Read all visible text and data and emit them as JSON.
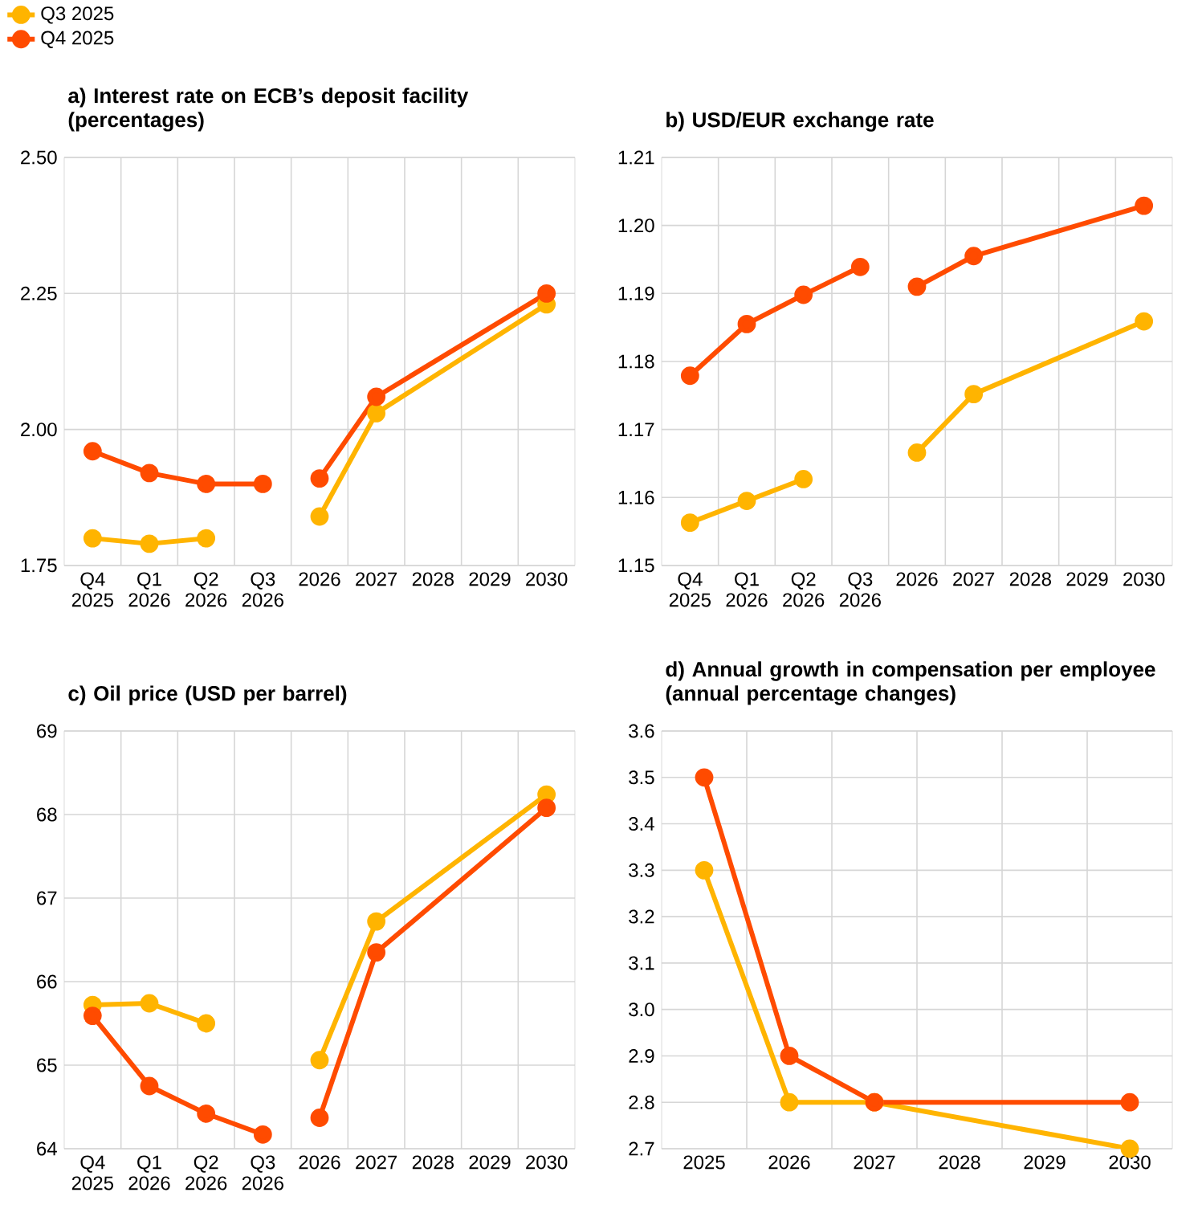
{
  "chart_data": [
    {
      "type": "line",
      "title": "a) Interest rate on ECB’s deposit facility (percentages)",
      "categories": [
        "Q4 2025",
        "Q1 2026",
        "Q2 2026",
        "Q3 2026",
        "2026",
        "2027",
        "2028",
        "2029",
        "2030"
      ],
      "ylim": [
        1.75,
        2.5
      ],
      "yticks": [
        {
          "value": 1.75,
          "label": "1.75"
        },
        {
          "value": 2.0,
          "label": "2.00"
        },
        {
          "value": 2.25,
          "label": "2.25"
        },
        {
          "value": 2.5,
          "label": "2.50"
        }
      ],
      "grid": true,
      "marker": "circle",
      "legend": "top left",
      "series": [
        {
          "name": "Q3 2025",
          "color": "#ffb400",
          "values": [
            1.8,
            1.79,
            1.8,
            null,
            null,
            null,
            null,
            null,
            null
          ]
        },
        {
          "name": "Q4 2025",
          "color": "#ff4b00",
          "values": [
            1.96,
            1.92,
            1.9,
            1.9,
            null,
            null,
            null,
            null,
            null
          ]
        },
        {
          "color": "#ffb400",
          "values": [
            null,
            null,
            null,
            null,
            1.84,
            2.03,
            null,
            null,
            2.23
          ]
        },
        {
          "color": "#ff4b00",
          "values": [
            null,
            null,
            null,
            null,
            1.91,
            2.06,
            null,
            null,
            2.25
          ]
        }
      ]
    },
    {
      "type": "line",
      "title": "b) USD/EUR exchange rate",
      "categories": [
        "Q4 2025",
        "Q1 2026",
        "Q2 2026",
        "Q3 2026",
        "2026",
        "2027",
        "2028",
        "2029",
        "2030"
      ],
      "ylim": [
        1.15,
        1.21
      ],
      "yticks": [
        1.15,
        1.16,
        1.17,
        1.18,
        1.19,
        {
          "value": 1.2,
          "label": "1.20"
        },
        1.21
      ],
      "grid": true,
      "marker": "circle",
      "series": [
        {
          "color": "#ffb400",
          "values": [
            1.1563,
            1.1595,
            1.1627,
            null,
            null,
            null,
            null,
            null,
            null
          ]
        },
        {
          "color": "#ff4b00",
          "values": [
            1.1779,
            1.1855,
            1.1898,
            1.1939,
            null,
            null,
            null,
            null,
            null
          ]
        },
        {
          "color": "#ffb400",
          "values": [
            null,
            null,
            null,
            null,
            1.1666,
            1.1752,
            null,
            null,
            1.1859
          ]
        },
        {
          "color": "#ff4b00",
          "values": [
            null,
            null,
            null,
            null,
            1.191,
            1.1955,
            null,
            null,
            1.2029
          ]
        }
      ]
    },
    {
      "type": "line",
      "title": "c) Oil price (USD per barrel)",
      "categories": [
        "Q4 2025",
        "Q1 2026",
        "Q2 2026",
        "Q3 2026",
        "2026",
        "2027",
        "2028",
        "2029",
        "2030"
      ],
      "ylim": [
        64,
        69
      ],
      "yticks": [
        64,
        65,
        66,
        67,
        68,
        69
      ],
      "grid": true,
      "marker": "circle",
      "series": [
        {
          "color": "#ffb400",
          "values": [
            65.72,
            65.74,
            65.5,
            null,
            null,
            null,
            null,
            null,
            null
          ]
        },
        {
          "color": "#ff4b00",
          "values": [
            65.59,
            64.75,
            64.42,
            64.17,
            null,
            null,
            null,
            null,
            null
          ]
        },
        {
          "color": "#ffb400",
          "values": [
            null,
            null,
            null,
            null,
            65.06,
            66.72,
            null,
            null,
            68.24
          ]
        },
        {
          "color": "#ff4b00",
          "values": [
            null,
            null,
            null,
            null,
            64.37,
            66.35,
            null,
            null,
            68.08
          ]
        }
      ]
    },
    {
      "type": "line",
      "title": "d) Annual growth in compensation per employee (annual percentage changes)",
      "categories": [
        "2025",
        "2026",
        "2027",
        "2028",
        "2029",
        "2030"
      ],
      "ylim": [
        2.7,
        3.6
      ],
      "yticks": [
        2.7,
        2.8,
        2.9,
        {
          "value": 3.0,
          "label": "3.0"
        },
        3.1,
        3.2,
        3.3,
        3.4,
        3.5,
        3.6
      ],
      "grid": true,
      "marker": "circle",
      "series": [
        {
          "color": "#ffb400",
          "values": [
            3.3,
            2.8,
            2.8,
            null,
            null,
            2.7
          ]
        },
        {
          "color": "#ff4b00",
          "values": [
            3.5,
            2.9,
            2.8,
            null,
            null,
            2.8
          ]
        }
      ]
    }
  ]
}
